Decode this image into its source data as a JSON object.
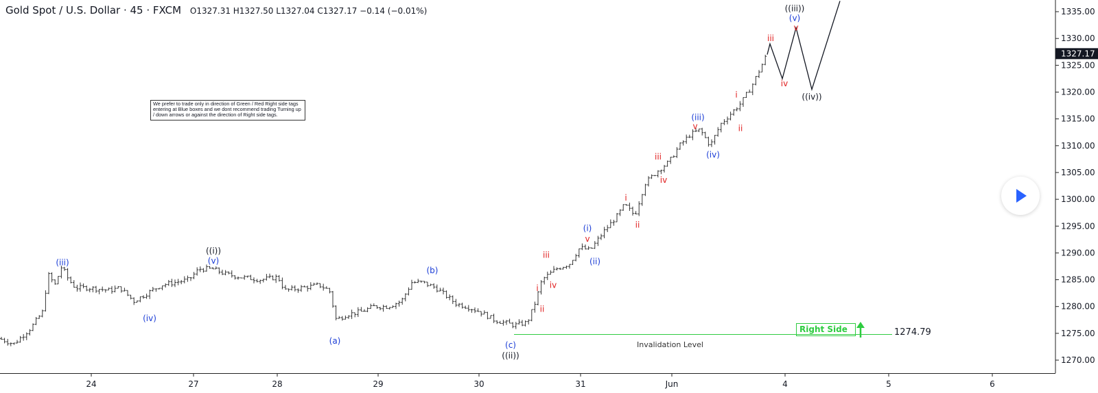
{
  "header": {
    "symbol": "Gold Spot / U.S. Dollar · 45 · FXCM",
    "ohlc": "O1327.31  H1327.50  L1327.04  C1327.17  −0.14 (−0.01%)"
  },
  "note": "We prefer to trade only in direction of Green / Red Right side tags entering at Blue boxes and we dont recommend trading Turning up / down arrows or against the direction of Right side tags.",
  "right_side_tag": "Right Side",
  "invalidation": {
    "label": "Invalidation Level",
    "value": "1274.79"
  },
  "colors": {
    "blue": "#1b3dd6",
    "red": "#e01f1f",
    "black": "#131722",
    "green": "#2ecc40",
    "price_tag": "#131722"
  },
  "chart_data": {
    "type": "ohlc",
    "ylim": [
      1268,
      1337
    ],
    "y_ticks": [
      "1270.00",
      "1275.00",
      "1280.00",
      "1285.00",
      "1290.00",
      "1295.00",
      "1300.00",
      "1305.00",
      "1310.00",
      "1315.00",
      "1320.00",
      "1325.00",
      "1330.00",
      "1335.00"
    ],
    "x_ticks": [
      "24",
      "27",
      "28",
      "29",
      "30",
      "31",
      "Jun",
      "4",
      "5",
      "6"
    ],
    "last_price": "1327.17",
    "price_path": [
      [
        0,
        1274
      ],
      [
        20,
        1273
      ],
      [
        45,
        1276
      ],
      [
        62,
        1279
      ],
      [
        70,
        1286
      ],
      [
        80,
        1284
      ],
      [
        90,
        1287.5
      ],
      [
        100,
        1285
      ],
      [
        110,
        1283.5
      ],
      [
        130,
        1283.5
      ],
      [
        160,
        1283
      ],
      [
        175,
        1283.5
      ],
      [
        195,
        1281
      ],
      [
        215,
        1282.5
      ],
      [
        235,
        1284
      ],
      [
        255,
        1284.5
      ],
      [
        275,
        1285
      ],
      [
        290,
        1287
      ],
      [
        310,
        1287
      ],
      [
        330,
        1286
      ],
      [
        350,
        1285.5
      ],
      [
        380,
        1285
      ],
      [
        405,
        1285.5
      ],
      [
        415,
        1283
      ],
      [
        440,
        1283.5
      ],
      [
        465,
        1284
      ],
      [
        480,
        1283
      ],
      [
        490,
        1277.5
      ],
      [
        505,
        1278.5
      ],
      [
        525,
        1279
      ],
      [
        545,
        1280
      ],
      [
        565,
        1280
      ],
      [
        585,
        1281
      ],
      [
        600,
        1284.5
      ],
      [
        615,
        1284.5
      ],
      [
        635,
        1283.5
      ],
      [
        650,
        1282
      ],
      [
        665,
        1280.5
      ],
      [
        680,
        1280
      ],
      [
        700,
        1279
      ],
      [
        720,
        1277.5
      ],
      [
        735,
        1277
      ],
      [
        750,
        1276.5
      ],
      [
        768,
        1277
      ],
      [
        778,
        1280
      ],
      [
        790,
        1285
      ],
      [
        810,
        1287
      ],
      [
        830,
        1288
      ],
      [
        845,
        1291
      ],
      [
        860,
        1290.5
      ],
      [
        880,
        1294
      ],
      [
        900,
        1297
      ],
      [
        910,
        1299
      ],
      [
        925,
        1297
      ],
      [
        940,
        1303
      ],
      [
        960,
        1305.5
      ],
      [
        975,
        1307
      ],
      [
        990,
        1310
      ],
      [
        1005,
        1312
      ],
      [
        1020,
        1313
      ],
      [
        1035,
        1310
      ],
      [
        1050,
        1314
      ],
      [
        1065,
        1316
      ],
      [
        1080,
        1318
      ],
      [
        1095,
        1321
      ],
      [
        1110,
        1325
      ],
      [
        1118,
        1327.2
      ]
    ],
    "projection": [
      [
        1118,
        1327
      ],
      [
        1122,
        1329
      ],
      [
        1140,
        1322.5
      ],
      [
        1160,
        1332
      ],
      [
        1183,
        1320.5
      ],
      [
        1224,
        1337
      ]
    ],
    "labels": [
      {
        "t": "(iii)",
        "x": 91,
        "y": 1288.2,
        "c": "blue"
      },
      {
        "t": "(iv)",
        "x": 218,
        "y": 1277.8,
        "c": "blue"
      },
      {
        "t": "((i))",
        "x": 311,
        "y": 1290.4,
        "c": "black"
      },
      {
        "t": "(v)",
        "x": 311,
        "y": 1288.5,
        "c": "blue"
      },
      {
        "t": "(a)",
        "x": 488,
        "y": 1273.6,
        "c": "blue"
      },
      {
        "t": "(b)",
        "x": 630,
        "y": 1286.7,
        "c": "blue"
      },
      {
        "t": "(c)",
        "x": 744,
        "y": 1272.8,
        "c": "blue"
      },
      {
        "t": "((ii))",
        "x": 744,
        "y": 1270.8,
        "c": "black"
      },
      {
        "t": "i",
        "x": 783,
        "y": 1283.4,
        "c": "red"
      },
      {
        "t": "ii",
        "x": 790,
        "y": 1279.5,
        "c": "red"
      },
      {
        "t": "iii",
        "x": 796,
        "y": 1289.6,
        "c": "red"
      },
      {
        "t": "iv",
        "x": 806,
        "y": 1284.0,
        "c": "red"
      },
      {
        "t": "v",
        "x": 856,
        "y": 1292.6,
        "c": "red"
      },
      {
        "t": "(i)",
        "x": 856,
        "y": 1294.6,
        "c": "blue"
      },
      {
        "t": "(ii)",
        "x": 867,
        "y": 1288.4,
        "c": "blue"
      },
      {
        "t": "i",
        "x": 912,
        "y": 1300.3,
        "c": "red"
      },
      {
        "t": "ii",
        "x": 929,
        "y": 1295.2,
        "c": "red"
      },
      {
        "t": "iii",
        "x": 959,
        "y": 1307.9,
        "c": "red"
      },
      {
        "t": "iv",
        "x": 967,
        "y": 1303.6,
        "c": "red"
      },
      {
        "t": "(iii)",
        "x": 1017,
        "y": 1315.3,
        "c": "blue"
      },
      {
        "t": "v",
        "x": 1013,
        "y": 1313.6,
        "c": "red"
      },
      {
        "t": "(iv)",
        "x": 1039,
        "y": 1308.3,
        "c": "blue"
      },
      {
        "t": "i",
        "x": 1073,
        "y": 1319.5,
        "c": "red"
      },
      {
        "t": "ii",
        "x": 1079,
        "y": 1313.2,
        "c": "red"
      },
      {
        "t": "iii",
        "x": 1123,
        "y": 1330.0,
        "c": "red"
      },
      {
        "t": "iv",
        "x": 1143,
        "y": 1321.6,
        "c": "red"
      },
      {
        "t": "((iii))",
        "x": 1158,
        "y": 1335.6,
        "c": "black"
      },
      {
        "t": "(v)",
        "x": 1158,
        "y": 1333.8,
        "c": "blue"
      },
      {
        "t": "v",
        "x": 1160,
        "y": 1332.0,
        "c": "red"
      },
      {
        "t": "((iv))",
        "x": 1183,
        "y": 1319.1,
        "c": "black"
      }
    ]
  }
}
